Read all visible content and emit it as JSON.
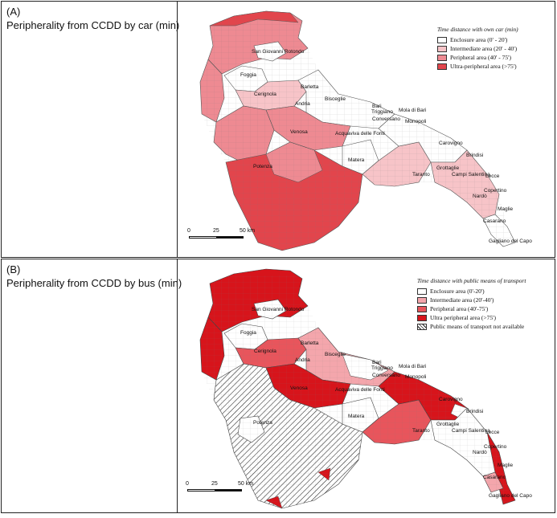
{
  "panels": [
    {
      "label": "(A)",
      "title": "Peripherality from CCDD by car (min)",
      "legend": {
        "title": "Time distance with own car (min)",
        "items": [
          {
            "label": "Enclosure area (0' - 20')",
            "color": "#ffffff"
          },
          {
            "label": "Intermediate area (20' - 40')",
            "color": "#f7c4c8"
          },
          {
            "label": "Peripheral area (40' - 75')",
            "color": "#ee8a92"
          },
          {
            "label": "Ultra-peripheral area (>75')",
            "color": "#e2454c"
          }
        ]
      },
      "scale": {
        "labels": [
          "0",
          "25",
          "50 km"
        ]
      },
      "places": [
        "San Giovanni Rotondo",
        "Foggia",
        "Cerignola",
        "Barletta",
        "Andria",
        "Bisceglie",
        "Bari",
        "Triggiano",
        "Mola di Bari",
        "Conversano",
        "Monopoli",
        "Acquaviva delle Fonti",
        "Venosa",
        "Carovigno",
        "Potenza",
        "Matera",
        "Brindisi",
        "Grottaglie",
        "Taranto",
        "Campi Salentina",
        "Lecce",
        "Copertino",
        "Nardò",
        "Maglie",
        "Casarano",
        "Gagliano del Capo"
      ]
    },
    {
      "label": "(B)",
      "title": "Peripherality from CCDD by bus (min)",
      "legend": {
        "title": "Time distance with public means of transport",
        "items": [
          {
            "label": "Enclosure area (0'-20')",
            "color": "#ffffff"
          },
          {
            "label": "Intermediate area (20'-40')",
            "color": "#f4a6ac"
          },
          {
            "label": "Peripheral area (40'-75')",
            "color": "#e8555c"
          },
          {
            "label": "Ultra peripheral area (>75')",
            "color": "#d7141b"
          },
          {
            "label": "Public means of transport not available",
            "color": "hatch"
          }
        ]
      },
      "scale": {
        "labels": [
          "0",
          "25",
          "50 km"
        ]
      },
      "places": [
        "San Giovanni Rotondo",
        "Foggia",
        "Cerignola",
        "Barletta",
        "Andria",
        "Bisceglie",
        "Bari",
        "Triggiano",
        "Mola di Bari",
        "Conversano",
        "Monopoli",
        "Acquaviva delle Fonti",
        "Venosa",
        "Carovigno",
        "Potenza",
        "Matera",
        "Brindisi",
        "Grottaglie",
        "Taranto",
        "Campi Salentina",
        "Lecce",
        "Copertino",
        "Nardò",
        "Maglie",
        "Casarano",
        "Gagliano del Capo"
      ]
    }
  ]
}
